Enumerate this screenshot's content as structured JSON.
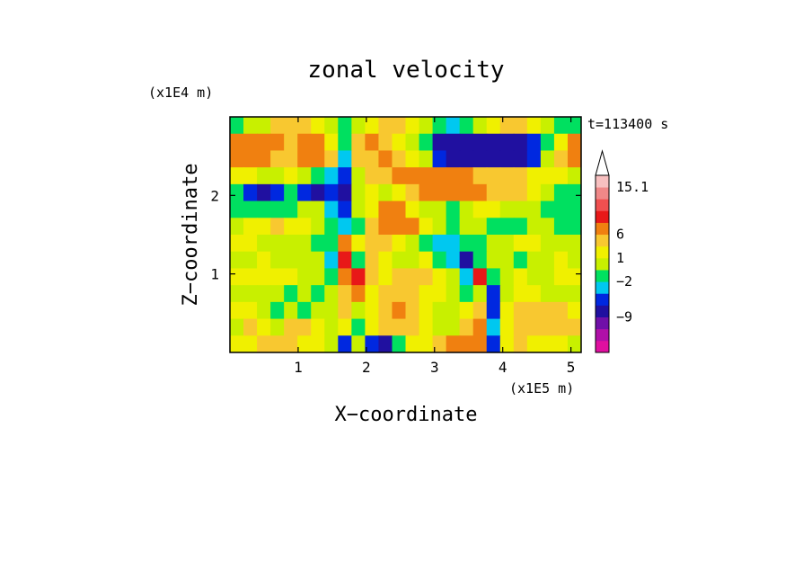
{
  "chart_data": {
    "type": "heatmap",
    "title": "zonal velocity",
    "xlabel": "X−coordinate",
    "ylabel": "Z−coordinate",
    "x_unit": "(x1E5 m)",
    "y_unit": "(x1E4 m)",
    "time_label": "t=113400 s",
    "xlim": [
      0,
      5.15
    ],
    "ylim": [
      0,
      3.0
    ],
    "x_ticks": [
      {
        "value": 1,
        "label": "1"
      },
      {
        "value": 2,
        "label": "2"
      },
      {
        "value": 3,
        "label": "3"
      },
      {
        "value": 4,
        "label": "4"
      },
      {
        "value": 5,
        "label": "5"
      }
    ],
    "y_ticks": [
      {
        "value": 1,
        "label": "1"
      },
      {
        "value": 2,
        "label": "2"
      }
    ],
    "colorbar": {
      "levels": [
        "#e010a0",
        "#b010a8",
        "#7010a8",
        "#2010a0",
        "#0028e0",
        "#00c8f0",
        "#00e060",
        "#c8f000",
        "#f0f000",
        "#f8c830",
        "#f08010",
        "#e81818",
        "#f05050",
        "#f08888",
        "#f8c0c0"
      ],
      "labels": [
        {
          "level": 3,
          "text": "−9"
        },
        {
          "level": 6,
          "text": "−2"
        },
        {
          "level": 8,
          "text": "1"
        },
        {
          "level": 10,
          "text": "6"
        },
        {
          "level": 14,
          "text": "15.1"
        }
      ],
      "extend": "max"
    },
    "field_levels": {
      "grid_nx": 26,
      "grid_ny": 14,
      "comment_none": "",
      "rows_top_to_bottom": [
        [
          6,
          7,
          7,
          9,
          9,
          9,
          8,
          7,
          6,
          7,
          8,
          9,
          9,
          8,
          7,
          6,
          5,
          6,
          7,
          8,
          9,
          9,
          8,
          7,
          6,
          6
        ],
        [
          10,
          10,
          10,
          10,
          9,
          10,
          10,
          8,
          6,
          9,
          10,
          9,
          8,
          7,
          6,
          3,
          3,
          3,
          3,
          3,
          3,
          3,
          4,
          6,
          8,
          10
        ],
        [
          10,
          10,
          10,
          9,
          9,
          10,
          10,
          9,
          5,
          9,
          9,
          10,
          9,
          8,
          7,
          4,
          3,
          3,
          3,
          3,
          3,
          3,
          4,
          7,
          9,
          10
        ],
        [
          8,
          8,
          7,
          7,
          8,
          7,
          6,
          5,
          4,
          7,
          9,
          9,
          10,
          10,
          10,
          10,
          10,
          10,
          9,
          9,
          9,
          9,
          8,
          8,
          8,
          7
        ],
        [
          6,
          4,
          3,
          4,
          6,
          4,
          3,
          4,
          3,
          7,
          8,
          7,
          8,
          9,
          10,
          10,
          10,
          10,
          10,
          9,
          9,
          9,
          8,
          7,
          6,
          6
        ],
        [
          6,
          6,
          6,
          6,
          6,
          7,
          7,
          5,
          4,
          7,
          8,
          10,
          10,
          8,
          7,
          7,
          6,
          7,
          8,
          8,
          7,
          7,
          7,
          6,
          6,
          6
        ],
        [
          7,
          8,
          8,
          9,
          8,
          8,
          7,
          6,
          5,
          6,
          9,
          10,
          10,
          10,
          8,
          7,
          6,
          7,
          7,
          6,
          6,
          6,
          7,
          7,
          6,
          6
        ],
        [
          8,
          8,
          7,
          7,
          7,
          7,
          6,
          6,
          10,
          8,
          9,
          9,
          8,
          7,
          6,
          5,
          5,
          6,
          6,
          7,
          7,
          8,
          8,
          7,
          7,
          7
        ],
        [
          7,
          7,
          8,
          7,
          7,
          7,
          7,
          5,
          11,
          6,
          9,
          8,
          7,
          7,
          8,
          6,
          5,
          3,
          6,
          7,
          7,
          6,
          7,
          7,
          8,
          7
        ],
        [
          8,
          8,
          8,
          8,
          8,
          7,
          7,
          6,
          10,
          11,
          9,
          8,
          9,
          9,
          9,
          8,
          7,
          5,
          11,
          6,
          7,
          8,
          7,
          7,
          8,
          8
        ],
        [
          7,
          7,
          7,
          7,
          6,
          7,
          6,
          7,
          9,
          10,
          8,
          9,
          9,
          9,
          8,
          8,
          7,
          6,
          7,
          4,
          7,
          8,
          8,
          7,
          7,
          7
        ],
        [
          8,
          8,
          7,
          6,
          7,
          6,
          7,
          7,
          9,
          7,
          8,
          9,
          10,
          9,
          8,
          7,
          7,
          8,
          9,
          4,
          8,
          9,
          9,
          9,
          9,
          8
        ],
        [
          7,
          9,
          8,
          7,
          9,
          9,
          8,
          7,
          8,
          6,
          8,
          9,
          9,
          9,
          8,
          7,
          7,
          9,
          10,
          5,
          8,
          9,
          9,
          9,
          9,
          9
        ],
        [
          8,
          8,
          9,
          9,
          9,
          8,
          8,
          7,
          4,
          7,
          4,
          3,
          6,
          8,
          8,
          9,
          10,
          10,
          10,
          4,
          8,
          9,
          8,
          8,
          8,
          7
        ]
      ]
    }
  }
}
